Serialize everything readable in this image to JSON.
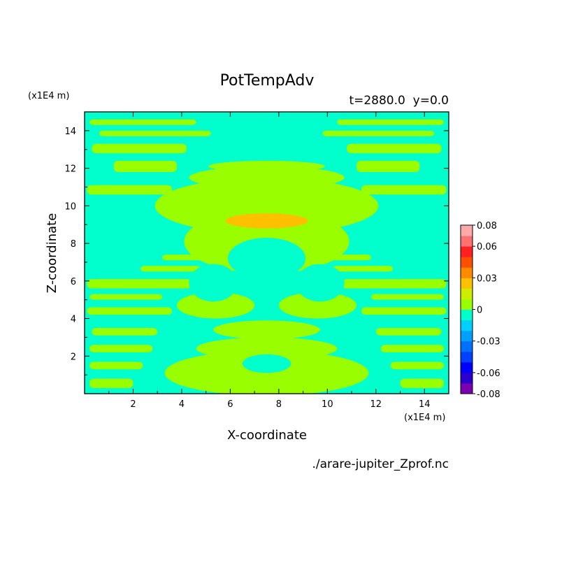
{
  "chart_data": {
    "type": "heatmap",
    "title": "PotTempAdv",
    "subtitle": "t=2880.0  y=0.0",
    "xlabel": "X-coordinate",
    "ylabel": "Z-coordinate",
    "x_unit": "(x1E4 m)",
    "y_unit": "(x1E4 m)",
    "source": "./arare-jupiter_Zprof.nc",
    "xlim": [
      0,
      15
    ],
    "ylim": [
      0,
      15
    ],
    "x_ticks": [
      2,
      4,
      6,
      8,
      10,
      12,
      14
    ],
    "y_ticks": [
      2,
      4,
      6,
      8,
      10,
      12,
      14
    ],
    "levels": [
      -0.08,
      -0.07,
      -0.06,
      -0.05,
      -0.04,
      -0.03,
      -0.02,
      -0.01,
      0,
      0.01,
      0.02,
      0.03,
      0.04,
      0.05,
      0.06,
      0.07,
      0.08
    ],
    "level_colors": [
      "#7a00b0",
      "#2a00cc",
      "#0000ff",
      "#0040ff",
      "#0070ff",
      "#00a0ff",
      "#00d0ff",
      "#00ffcc",
      "#99ff00",
      "#ccee00",
      "#ffc000",
      "#ff8a00",
      "#ff5000",
      "#ff2020",
      "#ff7070",
      "#ffaaaa"
    ],
    "colorbar_ticks": [
      "0.08",
      "0.06",
      "0.03",
      "0",
      "-0.03",
      "-0.06",
      "-0.08"
    ],
    "colorbar_tick_values": [
      0.08,
      0.06,
      0.03,
      0,
      -0.03,
      -0.06,
      -0.08
    ],
    "bands": [
      {
        "z": [
          0.3,
          0.8
        ],
        "x": [
          [
            0.2,
            2.0
          ],
          [
            13.0,
            14.8
          ]
        ]
      },
      {
        "z": [
          1.3,
          1.7
        ],
        "x": [
          [
            0.2,
            2.4
          ],
          [
            12.6,
            14.8
          ]
        ]
      },
      {
        "z": [
          2.2,
          2.6
        ],
        "x": [
          [
            0.2,
            2.8
          ],
          [
            12.2,
            14.8
          ]
        ]
      },
      {
        "z": [
          3.1,
          3.5
        ],
        "x": [
          [
            0.3,
            3.0
          ],
          [
            12.0,
            14.7
          ]
        ]
      },
      {
        "z": [
          4.2,
          4.6
        ],
        "x": [
          [
            0.1,
            3.6
          ],
          [
            11.4,
            14.9
          ]
        ]
      },
      {
        "z": [
          5.0,
          5.3
        ],
        "x": [
          [
            0.2,
            3.2
          ],
          [
            11.8,
            14.8
          ]
        ]
      },
      {
        "z": [
          5.6,
          6.1
        ],
        "x": [
          [
            0.1,
            4.4
          ],
          [
            10.6,
            14.9
          ]
        ]
      },
      {
        "z": [
          6.5,
          6.8
        ],
        "x": [
          [
            2.3,
            4.8
          ],
          [
            10.2,
            12.7
          ]
        ]
      },
      {
        "z": [
          7.1,
          7.4
        ],
        "x": [
          [
            3.2,
            5.2
          ],
          [
            9.8,
            11.8
          ]
        ]
      },
      {
        "z": [
          10.6,
          11.1
        ],
        "x": [
          [
            0.1,
            3.6
          ],
          [
            11.4,
            14.9
          ]
        ]
      },
      {
        "z": [
          11.8,
          12.4
        ],
        "x": [
          [
            1.2,
            3.8
          ],
          [
            11.2,
            13.8
          ]
        ]
      },
      {
        "z": [
          12.8,
          13.3
        ],
        "x": [
          [
            0.3,
            4.2
          ],
          [
            10.8,
            14.7
          ]
        ]
      },
      {
        "z": [
          13.7,
          14.0
        ],
        "x": [
          [
            0.6,
            5.2
          ],
          [
            9.8,
            14.4
          ]
        ]
      },
      {
        "z": [
          14.3,
          14.6
        ],
        "x": [
          [
            0.2,
            4.6
          ],
          [
            10.4,
            14.8
          ]
        ]
      }
    ],
    "blobs": [
      {
        "x": 7.5,
        "z": 1.1,
        "rx": 4.2,
        "rz": 1.2,
        "value": 0.005
      },
      {
        "x": 7.5,
        "z": 2.4,
        "rx": 2.9,
        "rz": 0.6,
        "value": 0.005
      },
      {
        "x": 7.5,
        "z": 3.4,
        "rx": 2.2,
        "rz": 0.5,
        "value": 0.005
      },
      {
        "x": 5.4,
        "z": 4.7,
        "rx": 1.6,
        "rz": 0.7,
        "value": 0.005
      },
      {
        "x": 9.6,
        "z": 4.7,
        "rx": 1.6,
        "rz": 0.7,
        "value": 0.005
      },
      {
        "x": 7.5,
        "z": 10.0,
        "rx": 4.6,
        "rz": 1.5,
        "value": 0.005
      },
      {
        "x": 7.5,
        "z": 8.1,
        "rx": 3.4,
        "rz": 1.7,
        "value": 0.005
      },
      {
        "x": 7.5,
        "z": 11.5,
        "rx": 3.2,
        "rz": 0.6,
        "value": 0.005
      },
      {
        "x": 7.5,
        "z": 12.1,
        "rx": 2.4,
        "rz": 0.3,
        "value": 0.005
      },
      {
        "x": 7.5,
        "z": 9.2,
        "rx": 1.7,
        "rz": 0.4,
        "value": 0.025
      },
      {
        "x": 7.5,
        "z": 7.2,
        "rx": 1.6,
        "rz": 1.1,
        "value": -0.005
      },
      {
        "x": 5.3,
        "z": 5.9,
        "rx": 1.0,
        "rz": 1.0,
        "value": -0.005
      },
      {
        "x": 9.7,
        "z": 5.9,
        "rx": 1.0,
        "rz": 1.0,
        "value": -0.005
      },
      {
        "x": 7.5,
        "z": 1.6,
        "rx": 1.0,
        "rz": 0.5,
        "value": -0.005
      }
    ]
  }
}
